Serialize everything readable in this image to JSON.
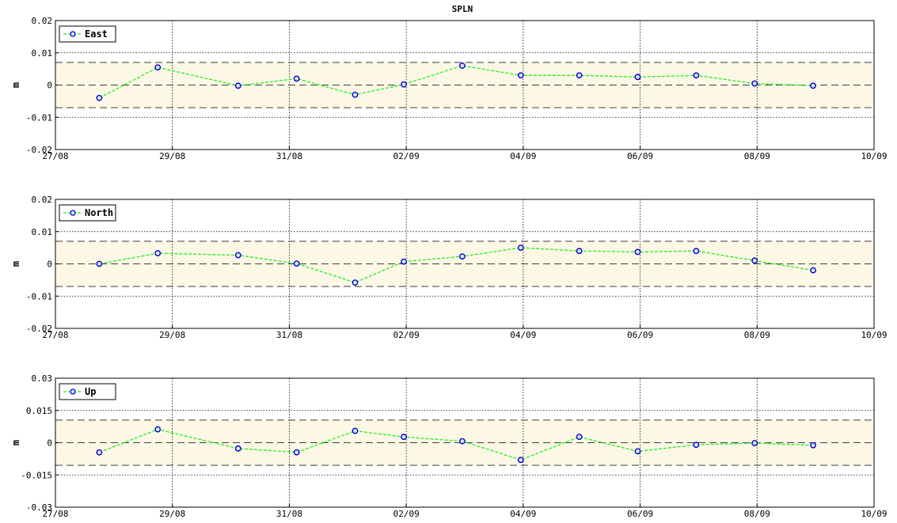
{
  "title": "SPLN",
  "colors": {
    "band": "#fdf8e6",
    "line": "#22ee22",
    "marker_edge": "#0000cc",
    "marker_face": "#dde4ff",
    "axis": "#000000"
  },
  "chart_data": [
    {
      "type": "line",
      "name": "East",
      "ylabel": "m",
      "ylim": [
        -0.02,
        0.02
      ],
      "yticks": [
        -0.02,
        -0.01,
        0,
        0.01,
        0.02
      ],
      "ytick_labels": [
        "-0.02",
        "-0.01",
        "0",
        "0.01",
        "0.02"
      ],
      "band": [
        -0.007,
        0.007
      ],
      "xlim": [
        "2025-08-27",
        "2025-09-10"
      ],
      "xtick_labels": [
        "27/08",
        "29/08",
        "31/08",
        "02/09",
        "04/09",
        "06/09",
        "08/09",
        "10/09"
      ],
      "grid": true,
      "legend": "top-left",
      "series": [
        {
          "name": "East",
          "x": [
            "2025-08-27T18:00",
            "2025-08-28T18:00",
            "2025-08-30T03:00",
            "2025-08-31T03:00",
            "2025-09-01T03:00",
            "2025-09-01T23:00",
            "2025-09-02T23:00",
            "2025-09-03T23:00",
            "2025-09-04T23:00",
            "2025-09-05T23:00",
            "2025-09-06T23:00",
            "2025-09-07T23:00",
            "2025-09-08T23:00"
          ],
          "values": [
            -0.004,
            0.0055,
            -0.0002,
            0.002,
            -0.003,
            0.0002,
            0.006,
            0.003,
            0.003,
            0.0025,
            0.003,
            0.0005,
            -0.0002
          ]
        }
      ]
    },
    {
      "type": "line",
      "name": "North",
      "ylabel": "m",
      "ylim": [
        -0.02,
        0.02
      ],
      "yticks": [
        -0.02,
        -0.01,
        0,
        0.01,
        0.02
      ],
      "ytick_labels": [
        "-0.02",
        "-0.01",
        "0",
        "0.01",
        "0.02"
      ],
      "band": [
        -0.007,
        0.007
      ],
      "xlim": [
        "2025-08-27",
        "2025-09-10"
      ],
      "xtick_labels": [
        "27/08",
        "29/08",
        "31/08",
        "02/09",
        "04/09",
        "06/09",
        "08/09",
        "10/09"
      ],
      "grid": true,
      "legend": "top-left",
      "series": [
        {
          "name": "North",
          "x": [
            "2025-08-27T18:00",
            "2025-08-28T18:00",
            "2025-08-30T03:00",
            "2025-08-31T03:00",
            "2025-09-01T03:00",
            "2025-09-01T23:00",
            "2025-09-02T23:00",
            "2025-09-03T23:00",
            "2025-09-04T23:00",
            "2025-09-05T23:00",
            "2025-09-06T23:00",
            "2025-09-07T23:00",
            "2025-09-08T23:00"
          ],
          "values": [
            0.0,
            0.0033,
            0.0027,
            0.0001,
            -0.0058,
            0.0007,
            0.0023,
            0.005,
            0.004,
            0.0037,
            0.004,
            0.001,
            -0.002
          ]
        }
      ]
    },
    {
      "type": "line",
      "name": "Up",
      "ylabel": "m",
      "ylim": [
        -0.03,
        0.03
      ],
      "yticks": [
        -0.03,
        -0.015,
        0,
        0.015,
        0.03
      ],
      "ytick_labels": [
        "-0.03",
        "-0.015",
        "0",
        "0.015",
        "0.03"
      ],
      "band": [
        -0.0105,
        0.0105
      ],
      "xlim": [
        "2025-08-27",
        "2025-09-10"
      ],
      "xtick_labels": [
        "27/08",
        "29/08",
        "31/08",
        "02/09",
        "04/09",
        "06/09",
        "08/09",
        "10/09"
      ],
      "grid": true,
      "legend": "top-left",
      "series": [
        {
          "name": "Up",
          "x": [
            "2025-08-27T18:00",
            "2025-08-28T18:00",
            "2025-08-30T03:00",
            "2025-08-31T03:00",
            "2025-09-01T03:00",
            "2025-09-01T23:00",
            "2025-09-02T23:00",
            "2025-09-03T23:00",
            "2025-09-04T23:00",
            "2025-09-05T23:00",
            "2025-09-06T23:00",
            "2025-09-07T23:00",
            "2025-09-08T23:00"
          ],
          "values": [
            -0.0045,
            0.0062,
            -0.0027,
            -0.0045,
            0.0055,
            0.0027,
            0.0007,
            -0.008,
            0.0027,
            -0.004,
            -0.001,
            -0.0002,
            -0.0012
          ]
        }
      ]
    }
  ]
}
